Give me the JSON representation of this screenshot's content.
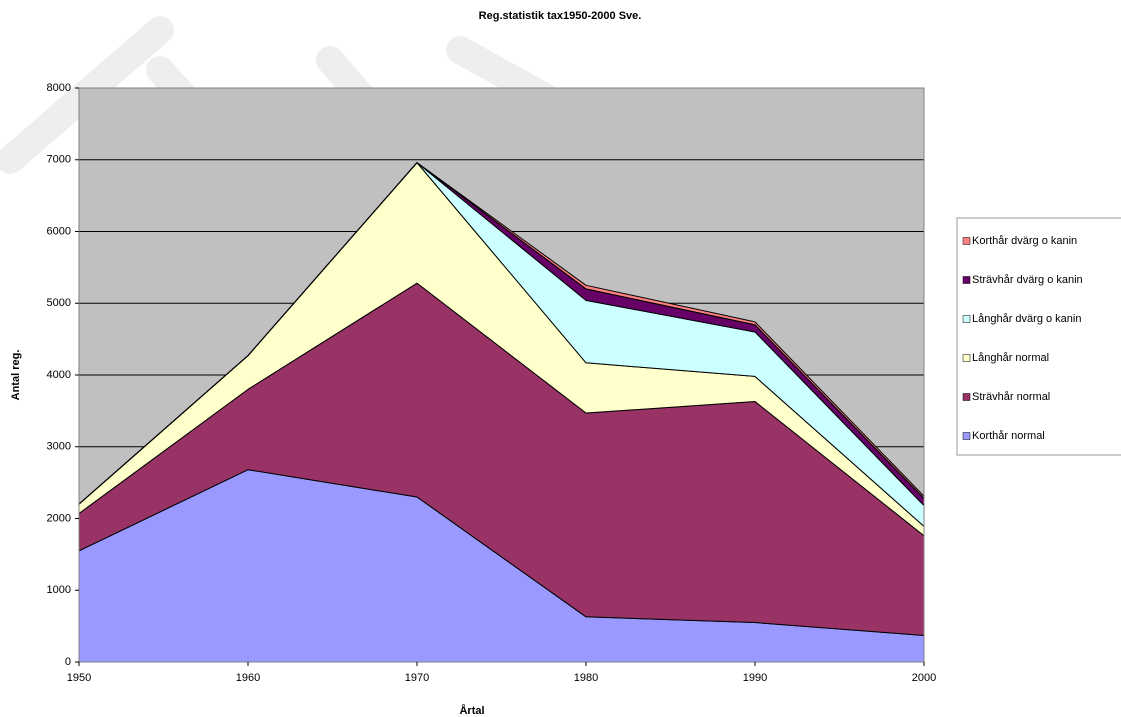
{
  "chart_data": {
    "type": "stacked-area",
    "title": "Reg.statistik tax1950-2000 Sve.",
    "x_label": "Årtal",
    "y_label": "Antal reg.",
    "x": [
      1950,
      1960,
      1970,
      1980,
      1990,
      2000
    ],
    "xlim": [
      1950,
      2000
    ],
    "xticks": [
      1950,
      1960,
      1970,
      1980,
      1990,
      2000
    ],
    "ylim": [
      0,
      8000
    ],
    "yticks": [
      0,
      1000,
      2000,
      3000,
      4000,
      5000,
      6000,
      7000,
      8000
    ],
    "grid": true,
    "legend": "right",
    "series": [
      {
        "name": "Korthår normal",
        "color": "#9999ff",
        "values": [
          1550,
          2680,
          2300,
          630,
          550,
          370
        ]
      },
      {
        "name": "Strävhår normal",
        "color": "#993366",
        "values": [
          520,
          1120,
          2980,
          2840,
          3080,
          1390
        ]
      },
      {
        "name": "Långhår normal",
        "color": "#ffffcc",
        "values": [
          130,
          470,
          1680,
          700,
          350,
          130
        ]
      },
      {
        "name": "Långhår dvärg o kanin",
        "color": "#ccffff",
        "values": [
          0,
          0,
          0,
          870,
          620,
          290
        ]
      },
      {
        "name": "Strävhår dvärg o kanin",
        "color": "#660066",
        "values": [
          0,
          0,
          0,
          160,
          100,
          100
        ]
      },
      {
        "name": "Korthår dvärg o kanin",
        "color": "#ff8080",
        "values": [
          0,
          0,
          0,
          50,
          40,
          30
        ]
      }
    ]
  }
}
